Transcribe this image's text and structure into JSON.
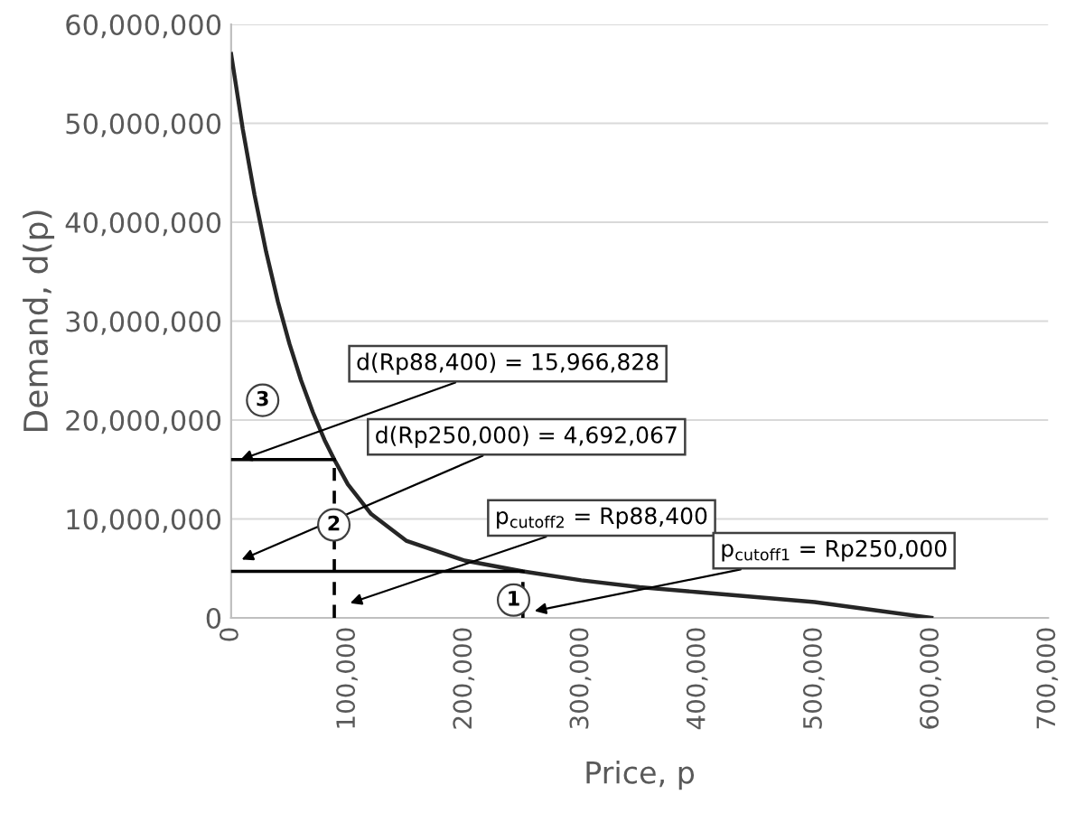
{
  "chart_data": {
    "type": "line",
    "xlabel": "Price, p",
    "ylabel": "Demand, d(p)",
    "xlim": [
      0,
      700000
    ],
    "ylim": [
      0,
      60000000
    ],
    "xticks": [
      {
        "value": 0,
        "label": "0"
      },
      {
        "value": 100000,
        "label": "100,000"
      },
      {
        "value": 200000,
        "label": "200,000"
      },
      {
        "value": 300000,
        "label": "300,000"
      },
      {
        "value": 400000,
        "label": "400,000"
      },
      {
        "value": 500000,
        "label": "500,000"
      },
      {
        "value": 600000,
        "label": "600,000"
      },
      {
        "value": 700000,
        "label": "700,000"
      }
    ],
    "yticks": [
      {
        "value": 0,
        "label": "0"
      },
      {
        "value": 10000000,
        "label": "10,000,000"
      },
      {
        "value": 20000000,
        "label": "20,000,000"
      },
      {
        "value": 30000000,
        "label": "30,000,000"
      },
      {
        "value": 40000000,
        "label": "40,000,000"
      },
      {
        "value": 50000000,
        "label": "50,000,000"
      },
      {
        "value": 60000000,
        "label": "60,000,000"
      }
    ],
    "grid": "y",
    "legend": false,
    "marker": "none",
    "series": [
      {
        "color": "#262626",
        "line_style": "solid",
        "x": [
          0,
          10000,
          20000,
          30000,
          40000,
          50000,
          60000,
          70000,
          80000,
          88400,
          100000,
          120000,
          150000,
          200000,
          250000,
          300000,
          350000,
          400000,
          450000,
          500000,
          550000,
          600000
        ],
        "values": [
          57000000,
          49400000,
          42800000,
          37000000,
          32000000,
          27700000,
          24000000,
          20800000,
          18000000,
          16000000,
          13500000,
          10500000,
          7800000,
          5800000,
          4700000,
          3800000,
          3100000,
          2600000,
          2100000,
          1600000,
          800000,
          0
        ]
      },
      {
        "color": "#000000",
        "line_style": "solid",
        "x": [
          0,
          88400
        ],
        "values": [
          16000000,
          16000000
        ]
      },
      {
        "color": "#000000",
        "line_style": "solid",
        "x": [
          0,
          250000
        ],
        "values": [
          4700000,
          4700000
        ]
      },
      {
        "color": "#000000",
        "line_style": "dashed",
        "x": [
          88400,
          88400
        ],
        "values": [
          0,
          16000000
        ]
      },
      {
        "color": "#000000",
        "line_style": "dashed",
        "x": [
          250000,
          250000
        ],
        "values": [
          0,
          4700000
        ]
      }
    ],
    "annotations": [
      {
        "text": "d(Rp88,400) = 15,966,828",
        "x": 8000,
        "y": 16000000
      },
      "d(Rp250,000) = 4,692,067",
      "p$_{cutoff2}$ = Rp88,400",
      "p$_{cutoff1}$ = Rp250,000",
      {
        "text": "1",
        "x": 242000,
        "y": 1800000
      },
      {
        "text": "2",
        "x": 88000,
        "y": 9400000
      },
      {
        "text": "3",
        "x": 27000,
        "y": 22000000
      }
    ]
  }
}
